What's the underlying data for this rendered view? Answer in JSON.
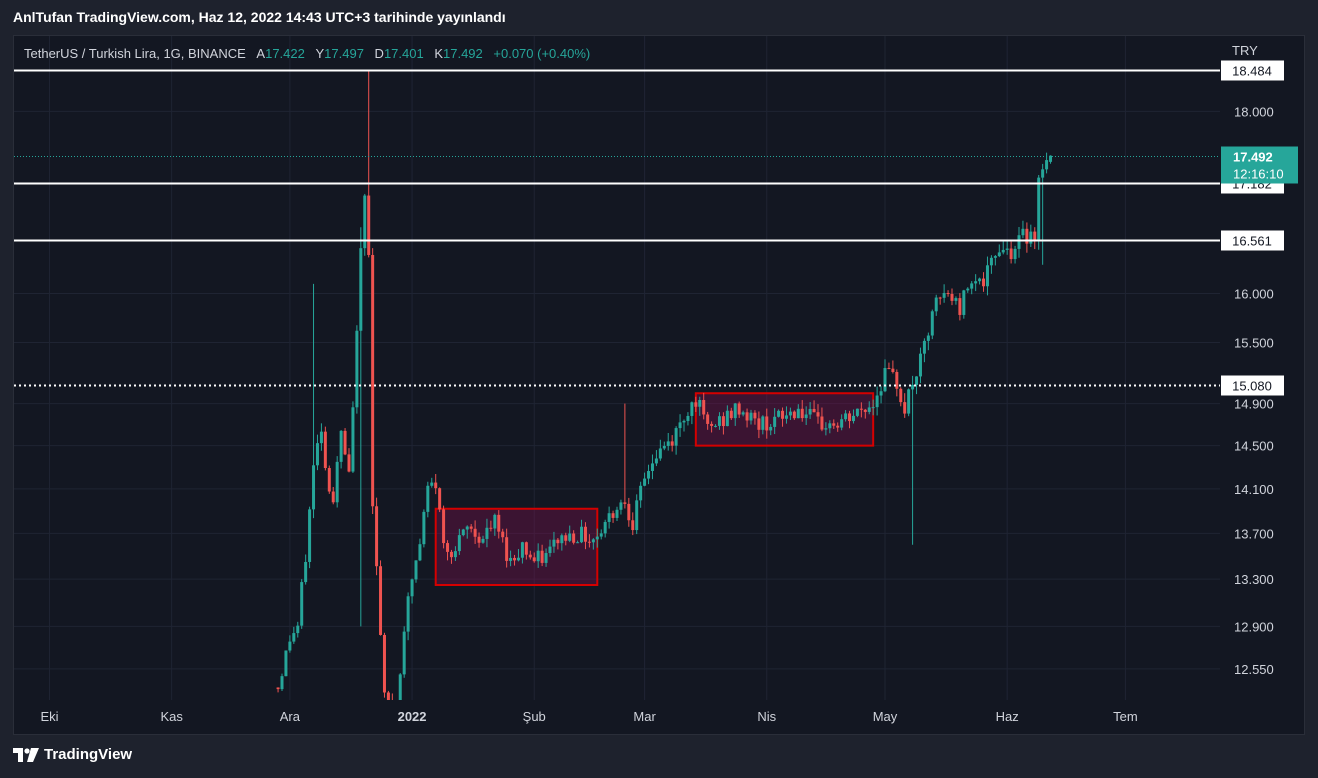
{
  "header": {
    "publish_text": "AnlTufan TradingView.com, Haz 12, 2022 14:43 UTC+3 tarihinde yayınlandı"
  },
  "legend": {
    "symbol": "TetherUS / Turkish Lira, 1G, BINANCE",
    "open_label": "A",
    "open": "17.422",
    "high_label": "Y",
    "high": "17.497",
    "low_label": "D",
    "low": "17.401",
    "close_label": "K",
    "close": "17.492",
    "change": "+0.070 (+0.40%)"
  },
  "currency": "TRY",
  "footer": {
    "brand": "TradingView",
    "logo_icon": "tradingview-logo-icon"
  },
  "colors": {
    "up": "#26a69a",
    "down": "#ef5350",
    "background": "#131722",
    "box": "#d50000"
  },
  "chart_data": {
    "type": "candlestick",
    "x_axis_labels": [
      "Eki",
      "Kas",
      "Ara",
      "2022",
      "Şub",
      "Mar",
      "Nis",
      "May",
      "Haz",
      "Tem"
    ],
    "y_axis_labels": [
      "18.000",
      "16.000",
      "15.500",
      "14.900",
      "14.500",
      "14.100",
      "13.700",
      "13.300",
      "12.900",
      "12.550"
    ],
    "scale": "log",
    "ylim": [
      12.3,
      18.9
    ],
    "x_range": [
      "2021-09-22",
      "2022-07-25"
    ],
    "current_price": {
      "value": 17.492,
      "label": "17.492",
      "countdown": "12:16:10"
    },
    "horizontal_lines": [
      {
        "value": 18.484,
        "label": "18.484",
        "style": "solid"
      },
      {
        "value": 17.182,
        "label": "17.182",
        "style": "solid"
      },
      {
        "value": 16.561,
        "label": "16.561",
        "style": "solid"
      },
      {
        "value": 15.08,
        "label": "15.080",
        "style": "dotted"
      }
    ],
    "boxes": [
      {
        "from": "2022-01-07",
        "to": "2022-02-17",
        "top": 13.92,
        "bottom": 13.25
      },
      {
        "from": "2022-03-14",
        "to": "2022-04-28",
        "top": 15.0,
        "bottom": 14.5
      }
    ],
    "anchors": [
      [
        "2021-11-28",
        12.4
      ],
      [
        "2021-12-01",
        12.8
      ],
      [
        "2021-12-03",
        12.9
      ],
      [
        "2021-12-05",
        13.5
      ],
      [
        "2021-12-07",
        14.3
      ],
      [
        "2021-12-09",
        14.7
      ],
      [
        "2021-12-10",
        14.3
      ],
      [
        "2021-12-12",
        14.0
      ],
      [
        "2021-12-14",
        14.6
      ],
      [
        "2021-12-16",
        14.2
      ],
      [
        "2021-12-17",
        14.8
      ],
      [
        "2021-12-18",
        15.7
      ],
      [
        "2021-12-19",
        16.4
      ],
      [
        "2021-12-20",
        17.0
      ],
      [
        "2021-12-21",
        16.5
      ],
      [
        "2021-12-22",
        14.0
      ],
      [
        "2021-12-23",
        13.4
      ],
      [
        "2021-12-24",
        12.8
      ],
      [
        "2021-12-25",
        12.3
      ],
      [
        "2021-12-28",
        12.2
      ],
      [
        "2021-12-30",
        12.9
      ],
      [
        "2022-01-01",
        13.3
      ],
      [
        "2022-01-03",
        13.6
      ],
      [
        "2022-01-05",
        14.1
      ],
      [
        "2022-01-07",
        14.15
      ],
      [
        "2022-01-09",
        13.6
      ],
      [
        "2022-01-12",
        13.55
      ],
      [
        "2022-01-15",
        13.75
      ],
      [
        "2022-01-19",
        13.65
      ],
      [
        "2022-01-22",
        13.8
      ],
      [
        "2022-01-26",
        13.45
      ],
      [
        "2022-01-29",
        13.6
      ],
      [
        "2022-02-01",
        13.45
      ],
      [
        "2022-02-04",
        13.5
      ],
      [
        "2022-02-07",
        13.65
      ],
      [
        "2022-02-12",
        13.7
      ],
      [
        "2022-02-16",
        13.65
      ],
      [
        "2022-02-19",
        13.8
      ],
      [
        "2022-02-22",
        13.95
      ],
      [
        "2022-02-24",
        14.0
      ],
      [
        "2022-02-26",
        13.8
      ],
      [
        "2022-02-28",
        14.05
      ],
      [
        "2022-03-02",
        14.3
      ],
      [
        "2022-03-05",
        14.45
      ],
      [
        "2022-03-08",
        14.55
      ],
      [
        "2022-03-10",
        14.7
      ],
      [
        "2022-03-12",
        14.85
      ],
      [
        "2022-03-14",
        14.95
      ],
      [
        "2022-03-17",
        14.65
      ],
      [
        "2022-03-21",
        14.75
      ],
      [
        "2022-03-25",
        14.85
      ],
      [
        "2022-03-30",
        14.7
      ],
      [
        "2022-04-04",
        14.75
      ],
      [
        "2022-04-09",
        14.85
      ],
      [
        "2022-04-14",
        14.7
      ],
      [
        "2022-04-19",
        14.7
      ],
      [
        "2022-04-24",
        14.8
      ],
      [
        "2022-04-28",
        14.9
      ],
      [
        "2022-05-01",
        15.2
      ],
      [
        "2022-05-04",
        15.1
      ],
      [
        "2022-05-06",
        14.85
      ],
      [
        "2022-05-08",
        15.1
      ],
      [
        "2022-05-10",
        15.3
      ],
      [
        "2022-05-12",
        15.6
      ],
      [
        "2022-05-14",
        15.9
      ],
      [
        "2022-05-17",
        16.0
      ],
      [
        "2022-05-20",
        15.85
      ],
      [
        "2022-05-23",
        16.2
      ],
      [
        "2022-05-26",
        16.1
      ],
      [
        "2022-05-28",
        16.3
      ],
      [
        "2022-05-30",
        16.5
      ],
      [
        "2022-06-02",
        16.45
      ],
      [
        "2022-06-05",
        16.6
      ],
      [
        "2022-06-08",
        16.65
      ],
      [
        "2022-06-09",
        17.2
      ],
      [
        "2022-06-10",
        17.42
      ],
      [
        "2022-06-11",
        17.42
      ],
      [
        "2022-06-12",
        17.492
      ]
    ],
    "spikes": [
      {
        "date": "2021-12-21",
        "high": 18.484
      },
      {
        "date": "2021-12-19",
        "high": 16.7,
        "low": 12.9
      },
      {
        "date": "2021-12-07",
        "high": 16.1
      },
      {
        "date": "2022-02-24",
        "high": 14.9
      },
      {
        "date": "2022-05-08",
        "low": 13.6
      },
      {
        "date": "2022-06-10",
        "low": 16.3
      }
    ]
  }
}
